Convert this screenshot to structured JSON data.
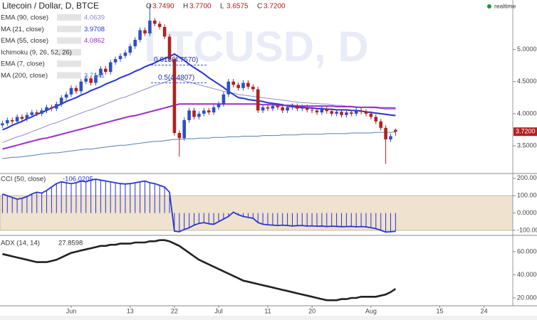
{
  "chart_data": [
    {
      "type": "candlestick",
      "title": "Litecoin / Dollar, D, BTCE",
      "ohlc_labels": [
        [
          "O",
          "3.7490"
        ],
        [
          "H",
          "3.7700"
        ],
        [
          "L",
          "3.6575"
        ],
        [
          "C",
          "3.7200"
        ]
      ],
      "watermark": "LTCUSD, D",
      "realtime": "realtime",
      "ylim": [
        3.08,
        5.77
      ],
      "yticks": [
        {
          "value": 3.5,
          "label": "3.5000"
        },
        {
          "value": 4.0,
          "label": "4.0000"
        },
        {
          "value": 4.5,
          "label": "4.5000"
        },
        {
          "value": 5.0,
          "label": "5.0000"
        }
      ],
      "up_color": "#2f4fc4",
      "down_color": "#b3201f",
      "open": [
        3.82,
        3.85,
        3.9,
        3.88,
        3.95,
        3.92,
        3.98,
        4.02,
        4.0,
        4.05,
        4.1,
        4.08,
        4.15,
        4.25,
        4.3,
        4.4,
        4.35,
        4.5,
        4.55,
        4.48,
        4.6,
        4.7,
        4.65,
        4.8,
        4.85,
        4.9,
        4.95,
        5.05,
        5.15,
        5.3,
        5.25,
        5.45,
        5.4,
        5.35,
        5.2,
        4.85,
        3.7,
        3.62,
        3.9,
        4.05,
        3.95,
        4.0,
        4.05,
        4.02,
        4.1,
        4.15,
        4.3,
        4.5,
        4.45,
        4.4,
        4.48,
        4.42,
        4.38,
        4.05,
        4.1,
        4.08,
        4.12,
        4.1,
        4.05,
        4.1,
        4.12,
        4.08,
        4.1,
        4.06,
        4.05,
        4.02,
        4.08,
        4.04,
        4.0,
        4.03,
        3.98,
        4.02,
        4.0,
        4.05,
        4.03,
        4.0,
        3.95,
        3.88,
        3.78,
        3.6,
        3.749
      ],
      "high": [
        3.89,
        3.94,
        3.94,
        3.99,
        3.99,
        4.02,
        4.06,
        4.06,
        4.09,
        4.14,
        4.14,
        4.19,
        4.29,
        4.34,
        4.44,
        4.44,
        4.54,
        4.59,
        4.59,
        4.64,
        4.74,
        4.74,
        4.84,
        4.89,
        4.94,
        4.99,
        5.09,
        5.19,
        5.34,
        5.34,
        5.7,
        5.49,
        5.44,
        5.39,
        5.24,
        4.89,
        3.74,
        3.94,
        4.09,
        4.09,
        4.04,
        4.09,
        4.09,
        4.14,
        4.19,
        4.34,
        4.54,
        4.54,
        4.49,
        4.52,
        4.52,
        4.46,
        4.42,
        4.14,
        4.14,
        4.16,
        4.16,
        4.14,
        4.14,
        4.16,
        4.16,
        4.14,
        4.14,
        4.1,
        4.09,
        4.12,
        4.12,
        4.08,
        4.07,
        4.07,
        4.06,
        4.06,
        4.09,
        4.09,
        4.07,
        4.04,
        3.99,
        3.92,
        3.82,
        3.69,
        3.77
      ],
      "low": [
        3.78,
        3.81,
        3.84,
        3.84,
        3.88,
        3.88,
        3.94,
        3.96,
        3.96,
        4.01,
        4.04,
        4.04,
        4.11,
        4.21,
        4.26,
        4.31,
        4.31,
        4.46,
        4.44,
        4.44,
        4.56,
        4.61,
        4.61,
        4.76,
        4.81,
        4.86,
        4.91,
        5.01,
        5.11,
        5.21,
        5.21,
        5.36,
        5.31,
        5.16,
        4.81,
        3.66,
        3.33,
        3.58,
        3.86,
        3.91,
        3.91,
        3.96,
        3.98,
        3.98,
        4.06,
        4.11,
        4.26,
        4.41,
        4.36,
        4.36,
        4.38,
        4.34,
        4.01,
        4.01,
        4.04,
        4.04,
        4.06,
        4.01,
        4.01,
        4.06,
        4.04,
        4.04,
        4.02,
        4.01,
        3.98,
        3.98,
        4.0,
        3.96,
        3.96,
        3.94,
        3.94,
        3.96,
        3.96,
        3.99,
        3.96,
        3.91,
        3.84,
        3.74,
        3.22,
        3.56,
        3.6575
      ],
      "close": [
        3.85,
        3.9,
        3.88,
        3.95,
        3.92,
        3.98,
        4.02,
        4.0,
        4.05,
        4.1,
        4.08,
        4.15,
        4.25,
        4.3,
        4.4,
        4.35,
        4.5,
        4.55,
        4.48,
        4.6,
        4.7,
        4.65,
        4.8,
        4.85,
        4.9,
        4.95,
        5.05,
        5.15,
        5.3,
        5.25,
        5.45,
        5.4,
        5.35,
        5.2,
        4.85,
        3.7,
        3.62,
        3.9,
        4.05,
        3.95,
        4.0,
        4.05,
        4.02,
        4.1,
        4.15,
        4.3,
        4.5,
        4.45,
        4.4,
        4.48,
        4.42,
        4.38,
        4.05,
        4.1,
        4.08,
        4.12,
        4.1,
        4.05,
        4.1,
        4.12,
        4.08,
        4.1,
        4.06,
        4.05,
        4.02,
        4.08,
        4.04,
        4.0,
        4.03,
        3.98,
        4.02,
        4.0,
        4.05,
        4.03,
        4.0,
        3.95,
        3.88,
        3.78,
        3.6,
        3.65,
        3.72
      ],
      "series": [
        {
          "name": "EMA (90, close)",
          "color": "#8c8cd6",
          "width": 1,
          "values": [
            3.55,
            3.58,
            3.61,
            3.64,
            3.66,
            3.69,
            3.72,
            3.75,
            3.78,
            3.81,
            3.84,
            3.86,
            3.89,
            3.92,
            3.95,
            3.98,
            4.01,
            4.04,
            4.06,
            4.09,
            4.12,
            4.15,
            4.18,
            4.21,
            4.24,
            4.26,
            4.29,
            4.32,
            4.35,
            4.38,
            4.41,
            4.44,
            4.46,
            4.49,
            4.52,
            4.55,
            4.53,
            4.51,
            4.49,
            4.47,
            4.45,
            4.43,
            4.41,
            4.39,
            4.37,
            4.35,
            4.33,
            4.32,
            4.3,
            4.29,
            4.28,
            4.27,
            4.26,
            4.25,
            4.24,
            4.23,
            4.22,
            4.21,
            4.2,
            4.19,
            4.18,
            4.17,
            4.17,
            4.16,
            4.16,
            4.15,
            4.15,
            4.14,
            4.13,
            4.13,
            4.12,
            4.12,
            4.11,
            4.1,
            4.1,
            4.09,
            4.09,
            4.08,
            4.07,
            4.07,
            4.0639
          ]
        },
        {
          "name": "MA (21, close)",
          "color": "#2433d8",
          "width": 2,
          "values": [
            3.75,
            3.78,
            3.82,
            3.85,
            3.88,
            3.92,
            3.95,
            3.99,
            4.02,
            4.05,
            4.09,
            4.12,
            4.15,
            4.19,
            4.22,
            4.25,
            4.29,
            4.32,
            4.36,
            4.39,
            4.42,
            4.46,
            4.49,
            4.52,
            4.56,
            4.59,
            4.62,
            4.66,
            4.69,
            4.73,
            4.76,
            4.79,
            4.83,
            4.86,
            4.89,
            4.93,
            4.88,
            4.83,
            4.77,
            4.72,
            4.67,
            4.62,
            4.56,
            4.51,
            4.46,
            4.41,
            4.35,
            4.3,
            4.25,
            4.24,
            4.22,
            4.21,
            4.2,
            4.19,
            4.17,
            4.16,
            4.15,
            4.14,
            4.12,
            4.11,
            4.1,
            4.1,
            4.09,
            4.09,
            4.08,
            4.08,
            4.07,
            4.07,
            4.06,
            4.06,
            4.06,
            4.05,
            4.05,
            4.04,
            4.03,
            4.02,
            4.01,
            4.0,
            3.99,
            3.98,
            3.9708
          ]
        },
        {
          "name": "EMA (55, close)",
          "color": "#9a2fd0",
          "width": 2,
          "values": [
            3.45,
            3.47,
            3.49,
            3.51,
            3.53,
            3.55,
            3.57,
            3.59,
            3.61,
            3.62,
            3.64,
            3.66,
            3.68,
            3.7,
            3.72,
            3.74,
            3.76,
            3.78,
            3.8,
            3.82,
            3.84,
            3.86,
            3.88,
            3.9,
            3.92,
            3.94,
            3.96,
            3.97,
            3.99,
            4.01,
            4.03,
            4.05,
            4.07,
            4.09,
            4.11,
            4.13,
            4.15,
            4.15,
            4.15,
            4.15,
            4.15,
            4.15,
            4.15,
            4.15,
            4.15,
            4.15,
            4.15,
            4.15,
            4.15,
            4.15,
            4.15,
            4.15,
            4.15,
            4.14,
            4.14,
            4.14,
            4.13,
            4.13,
            4.13,
            4.13,
            4.12,
            4.12,
            4.12,
            4.12,
            4.12,
            4.12,
            4.12,
            4.12,
            4.11,
            4.11,
            4.11,
            4.11,
            4.1,
            4.1,
            4.1,
            4.1,
            4.1,
            4.09,
            4.09,
            4.09,
            4.0862
          ]
        },
        {
          "name": "MA (200, close)",
          "color": "#5a7fb2",
          "width": 1,
          "values": [
            3.3,
            3.31,
            3.32,
            3.32,
            3.33,
            3.34,
            3.35,
            3.36,
            3.37,
            3.38,
            3.39,
            3.39,
            3.4,
            3.41,
            3.42,
            3.43,
            3.44,
            3.45,
            3.45,
            3.46,
            3.47,
            3.48,
            3.49,
            3.5,
            3.51,
            3.51,
            3.52,
            3.53,
            3.54,
            3.55,
            3.56,
            3.57,
            3.57,
            3.58,
            3.59,
            3.6,
            3.6,
            3.61,
            3.61,
            3.61,
            3.62,
            3.62,
            3.62,
            3.63,
            3.63,
            3.63,
            3.64,
            3.64,
            3.64,
            3.65,
            3.65,
            3.65,
            3.65,
            3.66,
            3.66,
            3.66,
            3.66,
            3.67,
            3.67,
            3.67,
            3.67,
            3.68,
            3.68,
            3.68,
            3.68,
            3.68,
            3.69,
            3.69,
            3.69,
            3.69,
            3.69,
            3.7,
            3.7,
            3.7,
            3.7,
            3.7,
            3.71,
            3.71,
            3.71,
            3.71,
            3.7141
          ]
        }
      ],
      "indicators": [
        "Ichimoku (9, 26, 52, 26)",
        "EMA (7, close)"
      ],
      "annotations": [
        {
          "text": "0.618(4.7570)",
          "value": 4.757
        },
        {
          "text": "0.5(4.4807)",
          "value": 4.4807
        }
      ]
    },
    {
      "type": "cci",
      "ylim": [
        -125,
        220
      ],
      "yticks": [
        {
          "value": 200,
          "label": "200.0000"
        },
        {
          "value": 100,
          "label": "100.0000"
        },
        {
          "value": 0,
          "label": "0.0000"
        },
        {
          "value": -100,
          "label": "-100.0000"
        }
      ],
      "band": {
        "from": -100,
        "to": 100,
        "color": "#efe3d0"
      },
      "series": [
        {
          "name": "CCI (50, close)",
          "color": "#2a35d0",
          "values": [
            110,
            100,
            90,
            80,
            85,
            95,
            110,
            120,
            115,
            130,
            150,
            170,
            180,
            175,
            170,
            175,
            185,
            180,
            190,
            195,
            190,
            185,
            180,
            175,
            170,
            168,
            170,
            175,
            180,
            185,
            175,
            170,
            160,
            150,
            120,
            -105,
            -108,
            -95,
            -85,
            -70,
            -60,
            -55,
            -62,
            -65,
            -50,
            -35,
            -20,
            5,
            -10,
            -20,
            -25,
            -30,
            -55,
            -65,
            -68,
            -70,
            -72,
            -70,
            -72,
            -75,
            -73,
            -72,
            -75,
            -74,
            -76,
            -75,
            -78,
            -76,
            -77,
            -79,
            -78,
            -77,
            -80,
            -78,
            -80,
            -85,
            -90,
            -100,
            -110,
            -108,
            -106.0205
          ]
        }
      ]
    },
    {
      "type": "line",
      "ylim": [
        13.2,
        72.9
      ],
      "yticks": [
        {
          "value": 20,
          "label": "20.0000"
        },
        {
          "value": 40,
          "label": "40.0000"
        },
        {
          "value": 60,
          "label": "60.0000"
        }
      ],
      "categories": [
        null,
        null,
        null,
        null,
        null,
        null,
        null,
        null,
        null,
        null,
        null,
        null,
        null,
        null,
        "Jun",
        null,
        null,
        null,
        null,
        null,
        null,
        null,
        null,
        null,
        null,
        null,
        "13",
        null,
        null,
        null,
        null,
        null,
        null,
        null,
        null,
        "22",
        null,
        null,
        null,
        null,
        null,
        null,
        null,
        null,
        "Jul",
        null,
        null,
        null,
        null,
        null,
        null,
        null,
        null,
        null,
        "11",
        null,
        null,
        null,
        null,
        null,
        null,
        null,
        null,
        "20",
        null,
        null,
        null,
        null,
        null,
        null,
        null,
        null,
        null,
        null,
        null,
        "Aug",
        null,
        null,
        null,
        null,
        null,
        null,
        null,
        null,
        null,
        null,
        null,
        null,
        null,
        "15",
        null,
        null,
        null,
        null,
        null,
        null,
        null,
        null,
        "24",
        null,
        null,
        null,
        null,
        null
      ],
      "series": [
        {
          "name": "ADX (14, 14)",
          "color": "#222222",
          "values": [
            58,
            57,
            56,
            55,
            54,
            53,
            52,
            51,
            51,
            51,
            52,
            53,
            55,
            57,
            59,
            60,
            61,
            62,
            63,
            64,
            65,
            65,
            66,
            66,
            67,
            67,
            67,
            68,
            68,
            68,
            69,
            69,
            70,
            70,
            69,
            67,
            65,
            62,
            59,
            56,
            53,
            51,
            49,
            47,
            45,
            43,
            41,
            39,
            37,
            35,
            34,
            33,
            32,
            31,
            30,
            29,
            28,
            27,
            26,
            25,
            24,
            23,
            22,
            21,
            20,
            19,
            18,
            18,
            18,
            19,
            19,
            20,
            20,
            21,
            21,
            21,
            21,
            22,
            23,
            25,
            27.8598,
            null,
            null,
            null,
            null,
            null,
            null,
            null,
            null,
            null,
            null,
            null,
            null,
            null,
            null,
            null,
            null,
            null,
            null,
            null,
            null,
            null,
            null,
            null
          ]
        }
      ]
    }
  ]
}
